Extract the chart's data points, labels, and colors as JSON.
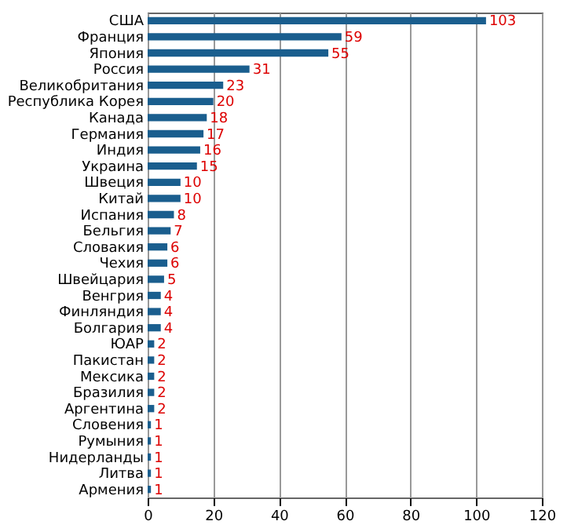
{
  "chart_data": {
    "type": "bar",
    "orientation": "horizontal",
    "categories": [
      "США",
      "Франция",
      "Япония",
      "Россия",
      "Великобритания",
      "Республика Корея",
      "Канада",
      "Германия",
      "Индия",
      "Украина",
      "Швеция",
      "Китай",
      "Испания",
      "Бельгия",
      "Словакия",
      "Чехия",
      "Швейцария",
      "Венгрия",
      "Финляндия",
      "Болгария",
      "ЮАР",
      "Пакистан",
      "Мексика",
      "Бразилия",
      "Аргентина",
      "Словения",
      "Румыния",
      "Нидерланды",
      "Литва",
      "Армения"
    ],
    "values": [
      103,
      59,
      55,
      31,
      23,
      20,
      18,
      17,
      16,
      15,
      10,
      10,
      8,
      7,
      6,
      6,
      5,
      4,
      4,
      4,
      2,
      2,
      2,
      2,
      2,
      1,
      1,
      1,
      1,
      1
    ],
    "color": "#1a5e8e",
    "xlim": [
      0,
      120
    ],
    "xticks": [
      0,
      20,
      40,
      60,
      80,
      100,
      120
    ],
    "grid": "x",
    "data_labels": true
  }
}
